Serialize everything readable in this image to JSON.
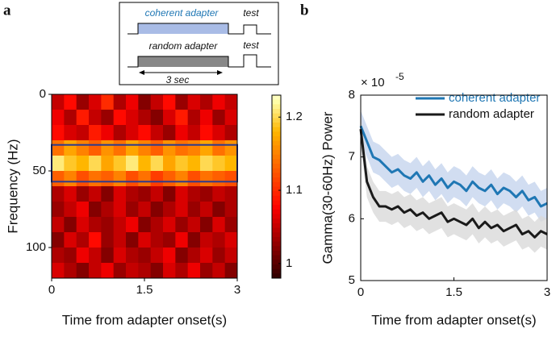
{
  "chart_data": [
    {
      "type": "heatmap",
      "panel_label": "a",
      "xlabel": "Time from adapter onset(s)",
      "ylabel": "Frequency (Hz)",
      "xlim": [
        0,
        3
      ],
      "xticks": [
        0,
        1.5,
        3
      ],
      "ylim": [
        0,
        120
      ],
      "yticks": [
        0,
        50,
        100
      ],
      "x": [
        0.1,
        0.3,
        0.5,
        0.7,
        0.9,
        1.1,
        1.3,
        1.5,
        1.7,
        1.9,
        2.1,
        2.3,
        2.5,
        2.7,
        2.9
      ],
      "y": [
        5,
        15,
        25,
        35,
        45,
        55,
        65,
        75,
        85,
        95,
        105,
        115
      ],
      "z": [
        [
          1.05,
          1.08,
          1.03,
          1.06,
          1.1,
          1.04,
          1.07,
          1.02,
          1.05,
          1.08,
          1.03,
          1.06,
          1.04,
          1.07,
          1.05
        ],
        [
          1.07,
          1.04,
          1.09,
          1.05,
          1.03,
          1.08,
          1.06,
          1.04,
          1.02,
          1.06,
          1.09,
          1.04,
          1.07,
          1.03,
          1.06
        ],
        [
          1.08,
          1.06,
          1.05,
          1.09,
          1.07,
          1.04,
          1.06,
          1.08,
          1.05,
          1.03,
          1.07,
          1.05,
          1.08,
          1.06,
          1.04
        ],
        [
          1.14,
          1.17,
          1.15,
          1.13,
          1.16,
          1.14,
          1.17,
          1.15,
          1.13,
          1.16,
          1.14,
          1.15,
          1.17,
          1.14,
          1.16
        ],
        [
          1.21,
          1.19,
          1.18,
          1.2,
          1.17,
          1.19,
          1.21,
          1.18,
          1.2,
          1.17,
          1.19,
          1.18,
          1.2,
          1.19,
          1.18
        ],
        [
          1.13,
          1.15,
          1.12,
          1.14,
          1.13,
          1.15,
          1.12,
          1.14,
          1.11,
          1.13,
          1.15,
          1.12,
          1.14,
          1.13,
          1.12
        ],
        [
          1.04,
          1.06,
          1.03,
          1.05,
          1.02,
          1.06,
          1.04,
          1.03,
          1.05,
          1.02,
          1.06,
          1.04,
          1.03,
          1.05,
          1.04
        ],
        [
          1.03,
          1.05,
          1.07,
          1.02,
          1.04,
          1.06,
          1.03,
          1.05,
          1.02,
          1.04,
          1.06,
          1.03,
          1.05,
          1.02,
          1.04
        ],
        [
          1.05,
          1.02,
          1.06,
          1.04,
          1.03,
          1.05,
          1.07,
          1.02,
          1.04,
          1.06,
          1.03,
          1.05,
          1.02,
          1.06,
          1.03
        ],
        [
          1.02,
          1.06,
          1.04,
          1.08,
          1.03,
          1.05,
          1.02,
          1.06,
          1.04,
          1.03,
          1.07,
          1.02,
          1.05,
          1.04,
          1.06
        ],
        [
          1.04,
          1.03,
          1.07,
          1.05,
          1.02,
          1.06,
          1.04,
          1.03,
          1.05,
          1.07,
          1.02,
          1.04,
          1.06,
          1.03,
          1.05
        ],
        [
          1.06,
          1.04,
          1.02,
          1.05,
          1.07,
          1.03,
          1.05,
          1.04,
          1.02,
          1.06,
          1.04,
          1.07,
          1.03,
          1.05,
          1.02
        ]
      ],
      "clim": [
        0.98,
        1.23
      ],
      "cticks": [
        1,
        1.1,
        1.2
      ],
      "highlight_range": [
        33,
        57
      ],
      "highlight_color": "#2b3a8f",
      "inset_labels": [
        "coherent adapter",
        "test",
        "random adapter",
        "test",
        "3 sec"
      ]
    },
    {
      "type": "line",
      "panel_label": "b",
      "xlabel": "Time from adapter onset(s)",
      "ylabel": "Gamma(30-60Hz) Power",
      "y_multiplier": "× 10",
      "y_multiplier_exp": "-5",
      "xlim": [
        0,
        3
      ],
      "xticks": [
        0,
        1.5,
        3
      ],
      "ylim": [
        5,
        8
      ],
      "yticks": [
        5,
        6,
        7,
        8
      ],
      "x": [
        0,
        0.1,
        0.2,
        0.3,
        0.4,
        0.5,
        0.6,
        0.7,
        0.8,
        0.9,
        1,
        1.1,
        1.2,
        1.3,
        1.4,
        1.5,
        1.6,
        1.7,
        1.8,
        1.9,
        2,
        2.1,
        2.2,
        2.3,
        2.4,
        2.5,
        2.6,
        2.7,
        2.8,
        2.9,
        3
      ],
      "legend": "upper right",
      "series": [
        {
          "name": "coherent adapter",
          "color": "#1f77b4",
          "band_color": "#c6d4ee",
          "error": 0.25,
          "values": [
            7.5,
            7.25,
            7.0,
            6.95,
            6.85,
            6.75,
            6.8,
            6.7,
            6.65,
            6.75,
            6.6,
            6.7,
            6.55,
            6.65,
            6.5,
            6.6,
            6.55,
            6.45,
            6.6,
            6.5,
            6.45,
            6.55,
            6.4,
            6.5,
            6.45,
            6.35,
            6.45,
            6.3,
            6.35,
            6.2,
            6.25
          ]
        },
        {
          "name": "random adapter",
          "color": "#1a1a1a",
          "band_color": "#d9d9d9",
          "error": 0.25,
          "values": [
            7.45,
            6.6,
            6.35,
            6.2,
            6.2,
            6.15,
            6.2,
            6.1,
            6.15,
            6.05,
            6.1,
            6.0,
            6.05,
            6.1,
            5.95,
            6.0,
            5.95,
            5.9,
            6.0,
            5.85,
            5.95,
            5.85,
            5.9,
            5.8,
            5.85,
            5.9,
            5.75,
            5.8,
            5.7,
            5.8,
            5.75
          ]
        }
      ]
    }
  ]
}
